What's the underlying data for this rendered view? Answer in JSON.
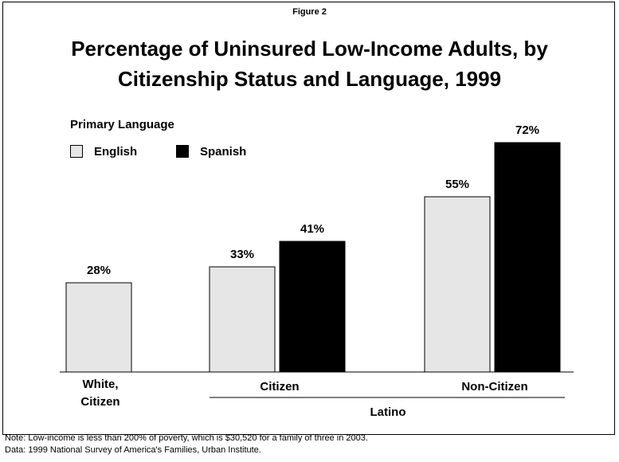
{
  "figure_label": "Figure 2",
  "title_lines": [
    "Percentage of Uninsured Low-Income Adults, by",
    "Citizenship Status and Language, 1999"
  ],
  "legend": {
    "title": "Primary Language",
    "items": [
      {
        "label": "English",
        "color": "#e6e6e6"
      },
      {
        "label": "Spanish",
        "color": "#000000"
      }
    ]
  },
  "chart_data": {
    "type": "bar",
    "title": "Percentage of Uninsured Low-Income Adults, by Citizenship Status and Language, 1999",
    "categories": [
      "White, Citizen",
      "Citizen",
      "Non-Citizen"
    ],
    "group_label": "Latino",
    "series": [
      {
        "name": "English",
        "color": "#e6e6e6",
        "values": [
          28,
          33,
          55
        ]
      },
      {
        "name": "Spanish",
        "color": "#000000",
        "values": [
          null,
          41,
          72
        ]
      }
    ],
    "value_labels": [
      [
        "28%",
        "33%",
        "55%"
      ],
      [
        null,
        "41%",
        "72%"
      ]
    ],
    "ylim": [
      0,
      100
    ],
    "grid": false,
    "legend_position": "top-left"
  },
  "notes": [
    "Note: Low-income is less than 200% of poverty, which is $30,520 for a family of three in 2003.",
    "Data: 1999 National Survey of America's Families, Urban Institute."
  ]
}
